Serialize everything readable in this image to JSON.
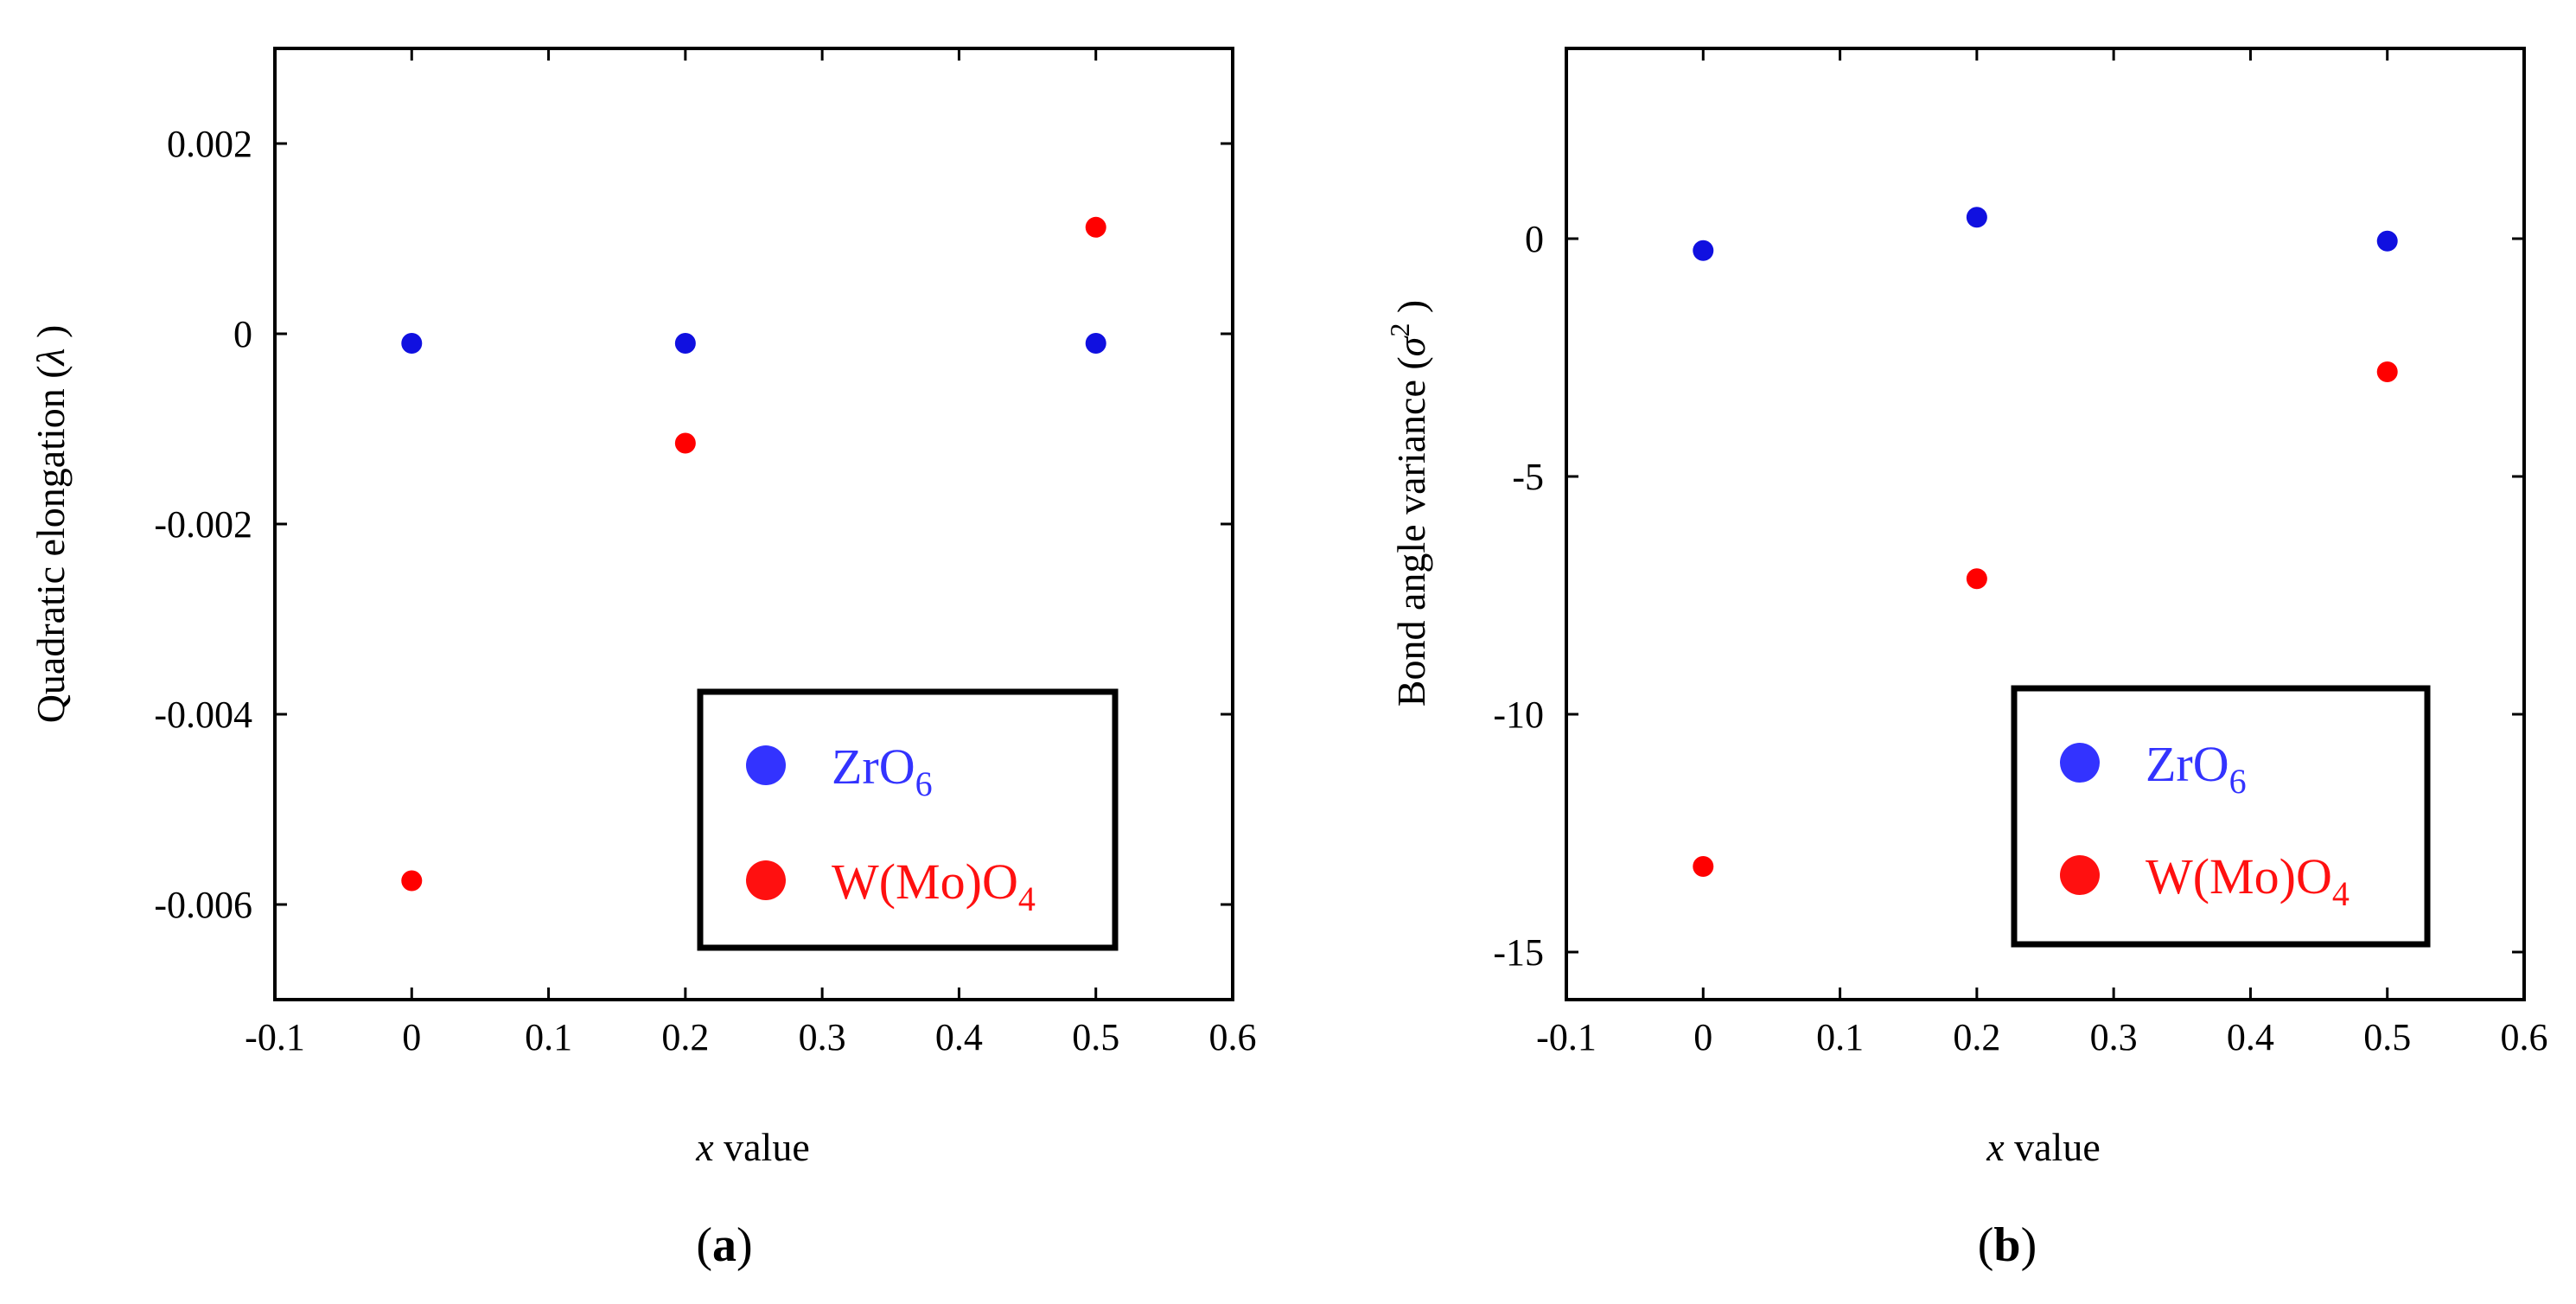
{
  "colors": {
    "ZrO6": "#1010e0",
    "W(Mo)O4": "#ff0000",
    "ZrO6_legend": "#3333ff",
    "W(Mo)O4_legend": "#ff1010"
  },
  "chart_data": [
    {
      "type": "scatter",
      "panel_label": "a",
      "xlabel_italic": "x",
      "xlabel_rest": " value",
      "ylabel": "Quadratic elongation (",
      "ylabel_symbol": "λ",
      "ylabel_close": ")",
      "xlim": [
        -0.1,
        0.6
      ],
      "ylim": [
        -0.007,
        0.003
      ],
      "xticks": [
        -0.1,
        0,
        0.1,
        0.2,
        0.3,
        0.4,
        0.5,
        0.6
      ],
      "xtick_labels": [
        "-0.1",
        "0",
        "0.1",
        "0.2",
        "0.3",
        "0.4",
        "0.5",
        "0.6"
      ],
      "yticks": [
        -0.006,
        -0.004,
        -0.002,
        0,
        0.002
      ],
      "ytick_labels": [
        "-0.006",
        "-0.004",
        "-0.002",
        "0",
        "0.002"
      ],
      "legend_position": "bottom-right",
      "series": [
        {
          "name": "ZrO6",
          "legend_base": "ZrO",
          "legend_sub": "6",
          "x": [
            0,
            0.2,
            0.5
          ],
          "y": [
            -0.0001,
            -0.0001,
            -0.0001
          ]
        },
        {
          "name": "W(Mo)O4",
          "legend_base": "W(Mo)O",
          "legend_sub": "4",
          "x": [
            0,
            0.2,
            0.5
          ],
          "y": [
            -0.00575,
            -0.00115,
            0.00112
          ]
        }
      ]
    },
    {
      "type": "scatter",
      "panel_label": "b",
      "xlabel_italic": "x",
      "xlabel_rest": " value",
      "ylabel": "Bond angle variance (",
      "ylabel_symbol": "σ",
      "ylabel_sup": "2",
      "ylabel_close": ")",
      "xlim": [
        -0.1,
        0.6
      ],
      "ylim": [
        -16,
        4
      ],
      "xticks": [
        -0.1,
        0,
        0.1,
        0.2,
        0.3,
        0.4,
        0.5,
        0.6
      ],
      "xtick_labels": [
        "-0.1",
        "0",
        "0.1",
        "0.2",
        "0.3",
        "0.4",
        "0.5",
        "0.6"
      ],
      "yticks": [
        -15,
        -10,
        -5,
        0
      ],
      "ytick_labels": [
        "-15",
        "-10",
        "-5",
        "0"
      ],
      "legend_position": "bottom-right",
      "series": [
        {
          "name": "ZrO6",
          "legend_base": "ZrO",
          "legend_sub": "6",
          "x": [
            0,
            0.2,
            0.5
          ],
          "y": [
            -0.25,
            0.45,
            -0.05
          ]
        },
        {
          "name": "W(Mo)O4",
          "legend_base": "W(Mo)O",
          "legend_sub": "4",
          "x": [
            0,
            0.2,
            0.5
          ],
          "y": [
            -13.2,
            -7.15,
            -2.8
          ]
        }
      ]
    }
  ]
}
